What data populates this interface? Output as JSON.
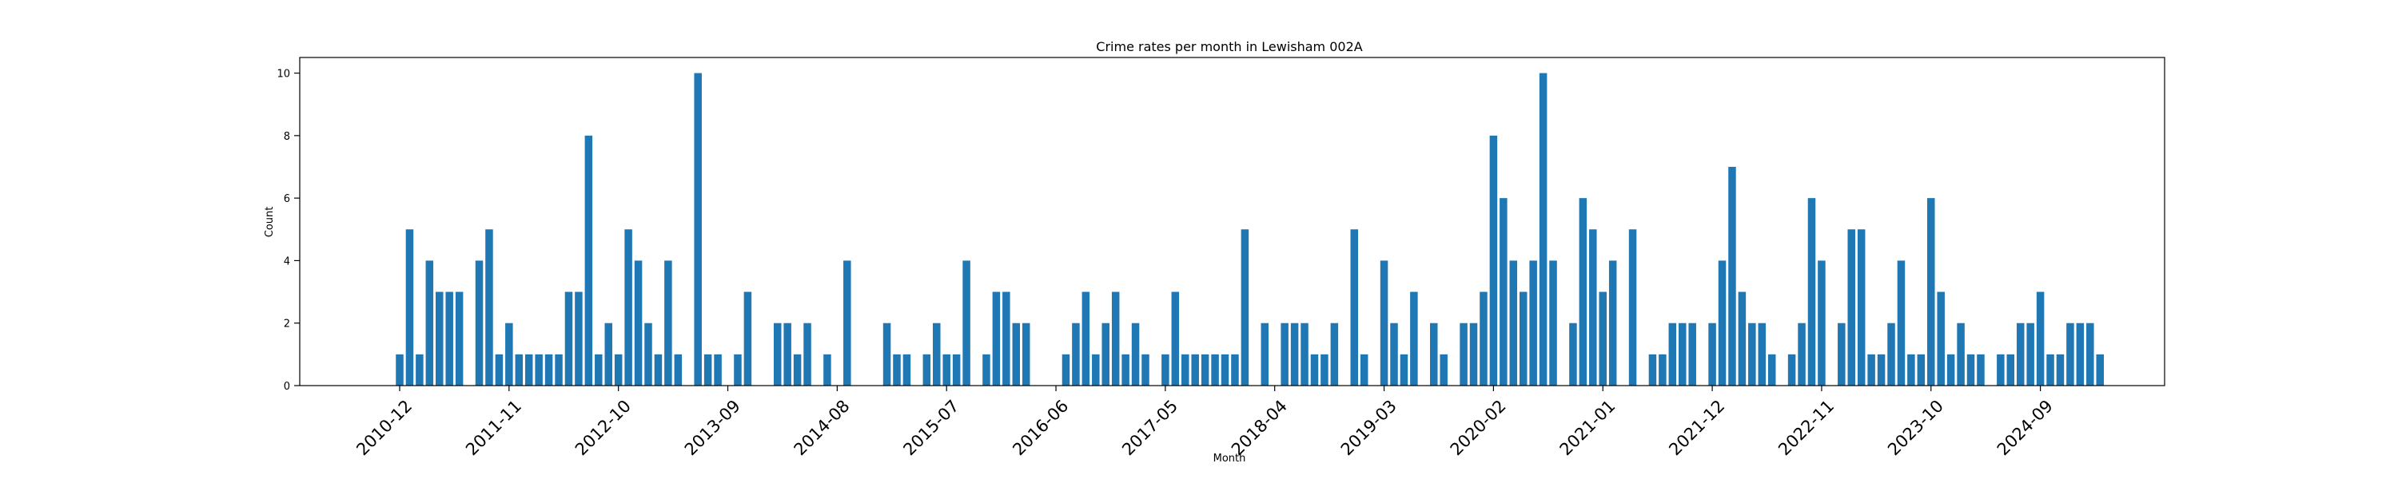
{
  "chart_data": {
    "type": "bar",
    "title": "Crime rates per month in Lewisham 002A",
    "xlabel": "Month",
    "ylabel": "Count",
    "ylim": [
      0,
      10.5
    ],
    "yticks": [
      0,
      2,
      4,
      6,
      8,
      10
    ],
    "xtick_labels": [
      "2010-12",
      "2011-11",
      "2012-10",
      "2013-09",
      "2014-08",
      "2015-07",
      "2016-06",
      "2017-05",
      "2018-04",
      "2019-03",
      "2020-02",
      "2021-01",
      "2021-12",
      "2022-11",
      "2023-10",
      "2024-09"
    ],
    "bar_color": "#1f77b4",
    "grid": false,
    "series": [
      {
        "values": [
          1,
          5,
          1,
          4,
          3,
          3,
          3,
          0,
          4,
          5,
          1,
          2,
          1,
          1,
          1,
          1,
          1,
          3,
          3,
          8,
          1,
          2,
          1,
          5,
          4,
          2,
          1,
          4,
          1,
          0,
          10,
          1,
          1,
          0,
          1,
          3,
          0,
          0,
          2,
          2,
          1,
          2,
          0,
          1,
          0,
          4,
          0,
          0,
          0,
          2,
          1,
          1,
          0,
          1,
          2,
          1,
          1,
          4,
          0,
          1,
          3,
          3,
          2,
          2,
          0,
          0,
          0,
          1,
          2,
          3,
          1,
          2,
          3,
          1,
          2,
          1,
          0,
          1,
          3,
          1,
          1,
          1,
          1,
          1,
          1,
          5,
          0,
          2,
          0,
          2,
          2,
          2,
          1,
          1,
          2,
          0,
          5,
          1,
          0,
          4,
          2,
          1,
          3,
          0,
          2,
          1,
          0,
          2,
          2,
          3,
          8,
          6,
          4,
          3,
          4,
          10,
          4,
          0,
          2,
          6,
          5,
          3,
          4,
          0,
          5,
          0,
          1,
          1,
          2,
          2,
          2,
          0,
          2,
          4,
          7,
          3,
          2,
          2,
          1,
          0,
          1,
          2,
          6,
          4,
          0,
          2,
          5,
          5,
          1,
          1,
          2,
          4,
          1,
          1,
          6,
          3,
          1,
          2,
          1,
          1,
          0,
          1,
          1,
          2,
          2,
          3,
          1,
          1,
          2,
          2,
          2,
          1
        ]
      }
    ]
  }
}
